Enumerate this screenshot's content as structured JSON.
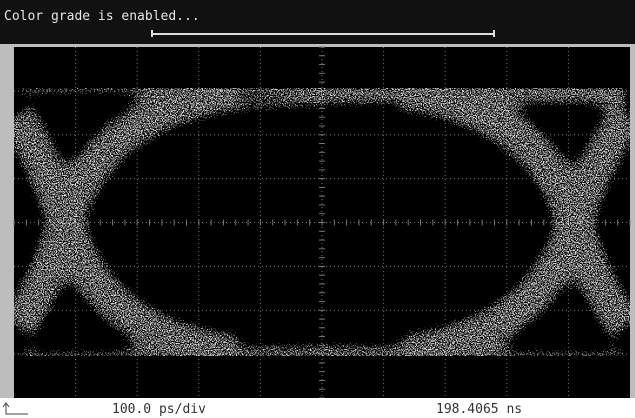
{
  "status": {
    "message": "Color grade is enabled..."
  },
  "footer": {
    "scale": "100.0 ps/div",
    "time": "198.4065 ns"
  }
}
